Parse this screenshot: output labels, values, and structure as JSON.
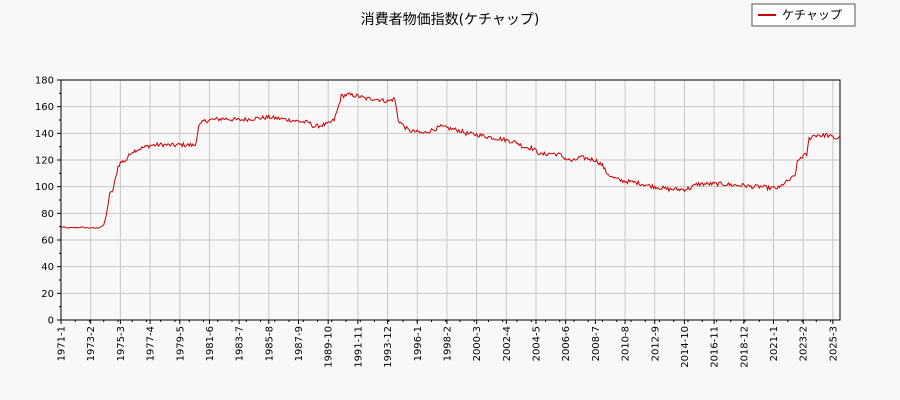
{
  "chart_data": {
    "type": "line",
    "title": "消費者物価指数(ケチャップ)",
    "xlabel": "",
    "ylabel": "",
    "ylim": [
      0,
      180
    ],
    "yticks": [
      0,
      20,
      40,
      60,
      80,
      100,
      120,
      140,
      160,
      180
    ],
    "xlim": [
      "1971-1",
      "2025-9"
    ],
    "xticks": [
      "1971-1",
      "1973-2",
      "1975-3",
      "1977-4",
      "1979-5",
      "1981-6",
      "1983-7",
      "1985-8",
      "1987-9",
      "1989-10",
      "1991-11",
      "1993-12",
      "1996-1",
      "1998-2",
      "2000-3",
      "2002-4",
      "2004-5",
      "2006-6",
      "2008-7",
      "2010-8",
      "2012-9",
      "2014-10",
      "2016-11",
      "2018-12",
      "2021-1",
      "2023-2",
      "2025-3"
    ],
    "grid": true,
    "legend": {
      "placement": "top-right",
      "entries": [
        "ケチャップ"
      ]
    },
    "series": [
      {
        "name": "ケチャップ",
        "color": "#cc0000",
        "points": [
          [
            "1971-1",
            70
          ],
          [
            "1971-6",
            69
          ],
          [
            "1972-6",
            69.5
          ],
          [
            "1973-2",
            69
          ],
          [
            "1973-8",
            69
          ],
          [
            "1974-1",
            71
          ],
          [
            "1974-3",
            78
          ],
          [
            "1974-6",
            94
          ],
          [
            "1974-9",
            98
          ],
          [
            "1975-1",
            115
          ],
          [
            "1975-3",
            118
          ],
          [
            "1975-8",
            120
          ],
          [
            "1975-12",
            126
          ],
          [
            "1976-6",
            128
          ],
          [
            "1977-4",
            131
          ],
          [
            "1978-1",
            131.5
          ],
          [
            "1979-1",
            131
          ],
          [
            "1979-5",
            131.5
          ],
          [
            "1980-6",
            131
          ],
          [
            "1980-9",
            145
          ],
          [
            "1981-1",
            149
          ],
          [
            "1981-6",
            150
          ],
          [
            "1982-6",
            151
          ],
          [
            "1983-7",
            150
          ],
          [
            "1984-6",
            151
          ],
          [
            "1985-8",
            152
          ],
          [
            "1986-6",
            151
          ],
          [
            "1987-9",
            149
          ],
          [
            "1988-6",
            148
          ],
          [
            "1988-10",
            145
          ],
          [
            "1989-4",
            146
          ],
          [
            "1989-10",
            147
          ],
          [
            "1990-3",
            150
          ],
          [
            "1990-6",
            158
          ],
          [
            "1990-9",
            168
          ],
          [
            "1991-3",
            169
          ],
          [
            "1991-11",
            168
          ],
          [
            "1992-6",
            166
          ],
          [
            "1993-1",
            166
          ],
          [
            "1993-12",
            164
          ],
          [
            "1994-6",
            166
          ],
          [
            "1994-9",
            150
          ],
          [
            "1995-1",
            146
          ],
          [
            "1995-6",
            142
          ],
          [
            "1996-1",
            141
          ],
          [
            "1996-6",
            140
          ],
          [
            "1997-3",
            143
          ],
          [
            "1997-9",
            145
          ],
          [
            "1998-2",
            144
          ],
          [
            "1999-1",
            142
          ],
          [
            "1999-6",
            140
          ],
          [
            "2000-3",
            139
          ],
          [
            "2000-9",
            138
          ],
          [
            "2001-3",
            137
          ],
          [
            "2002-4",
            135
          ],
          [
            "2003-1",
            133
          ],
          [
            "2003-6",
            130
          ],
          [
            "2004-1",
            129
          ],
          [
            "2004-5",
            127
          ],
          [
            "2004-9",
            124
          ],
          [
            "2005-6",
            125
          ],
          [
            "2006-1",
            124
          ],
          [
            "2006-6",
            121
          ],
          [
            "2006-12",
            119
          ],
          [
            "2007-6",
            122
          ],
          [
            "2008-1",
            121
          ],
          [
            "2008-7",
            120
          ],
          [
            "2009-1",
            116
          ],
          [
            "2009-4",
            111
          ],
          [
            "2009-9",
            107
          ],
          [
            "2010-3",
            105
          ],
          [
            "2010-8",
            104
          ],
          [
            "2011-6",
            103
          ],
          [
            "2012-3",
            101
          ],
          [
            "2012-9",
            100
          ],
          [
            "2013-3",
            99
          ],
          [
            "2013-9",
            98
          ],
          [
            "2014-4",
            98
          ],
          [
            "2014-10",
            98
          ],
          [
            "2015-3",
            99
          ],
          [
            "2015-9",
            102
          ],
          [
            "2016-6",
            102
          ],
          [
            "2016-11",
            102
          ],
          [
            "2017-6",
            102
          ],
          [
            "2018-6",
            101
          ],
          [
            "2018-12",
            101
          ],
          [
            "2019-6",
            100
          ],
          [
            "2020-3",
            100
          ],
          [
            "2020-9",
            99
          ],
          [
            "2021-1",
            99
          ],
          [
            "2021-6",
            99
          ],
          [
            "2021-9",
            102
          ],
          [
            "2022-1",
            104
          ],
          [
            "2022-4",
            106
          ],
          [
            "2022-7",
            108
          ],
          [
            "2022-9",
            118
          ],
          [
            "2022-12",
            122
          ],
          [
            "2023-2",
            123
          ],
          [
            "2023-5",
            124
          ],
          [
            "2023-7",
            136
          ],
          [
            "2023-10",
            138
          ],
          [
            "2024-3",
            139
          ],
          [
            "2024-6",
            138
          ],
          [
            "2024-9",
            139
          ],
          [
            "2025-3",
            137
          ],
          [
            "2025-6",
            136
          ],
          [
            "2025-9",
            138
          ]
        ]
      }
    ]
  }
}
